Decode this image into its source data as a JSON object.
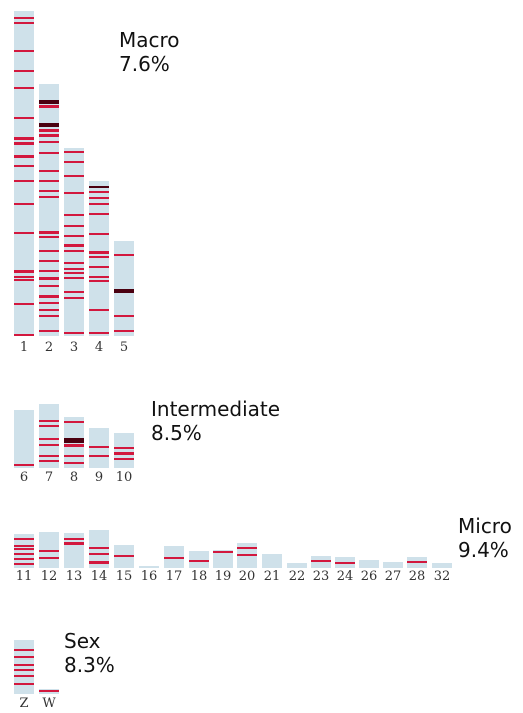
{
  "colors": {
    "chromosome": "#cfe1ea",
    "band": "#d2183e",
    "band_dark": "#4a0010",
    "label": "#333333"
  },
  "groups": [
    {
      "id": "macro",
      "name": "Macro",
      "percent": "7.6%"
    },
    {
      "id": "intermediate",
      "name": "Intermediate",
      "percent": "8.5%"
    },
    {
      "id": "micro",
      "name": "Micro",
      "percent": "9.4%"
    },
    {
      "id": "sex",
      "name": "Sex",
      "percent": "8.3%"
    }
  ],
  "chromosomes": [
    {
      "label": "1",
      "group": "macro"
    },
    {
      "label": "2",
      "group": "macro"
    },
    {
      "label": "3",
      "group": "macro"
    },
    {
      "label": "4",
      "group": "macro"
    },
    {
      "label": "5",
      "group": "macro"
    },
    {
      "label": "6",
      "group": "intermediate"
    },
    {
      "label": "7",
      "group": "intermediate"
    },
    {
      "label": "8",
      "group": "intermediate"
    },
    {
      "label": "9",
      "group": "intermediate"
    },
    {
      "label": "10",
      "group": "intermediate"
    },
    {
      "label": "11",
      "group": "micro"
    },
    {
      "label": "12",
      "group": "micro"
    },
    {
      "label": "13",
      "group": "micro"
    },
    {
      "label": "14",
      "group": "micro"
    },
    {
      "label": "15",
      "group": "micro"
    },
    {
      "label": "16",
      "group": "micro"
    },
    {
      "label": "17",
      "group": "micro"
    },
    {
      "label": "18",
      "group": "micro"
    },
    {
      "label": "19",
      "group": "micro"
    },
    {
      "label": "20",
      "group": "micro"
    },
    {
      "label": "21",
      "group": "micro"
    },
    {
      "label": "22",
      "group": "micro"
    },
    {
      "label": "23",
      "group": "micro"
    },
    {
      "label": "24",
      "group": "micro"
    },
    {
      "label": "26",
      "group": "micro"
    },
    {
      "label": "27",
      "group": "micro"
    },
    {
      "label": "28",
      "group": "micro"
    },
    {
      "label": "32",
      "group": "micro"
    },
    {
      "label": "Z",
      "group": "sex"
    },
    {
      "label": "W",
      "group": "sex"
    }
  ]
}
